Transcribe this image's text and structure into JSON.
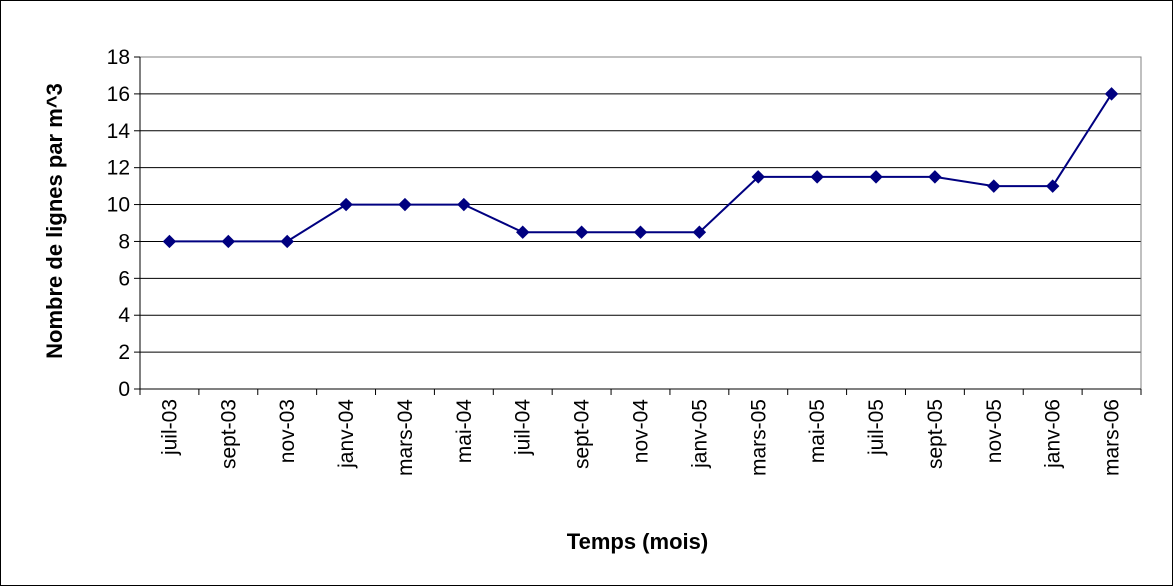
{
  "chart_data": {
    "type": "line",
    "title": "",
    "xlabel": "Temps (mois)",
    "ylabel": "Nombre de lignes par m^3",
    "ylim": [
      0,
      18
    ],
    "yticks": [
      "0",
      "2",
      "4",
      "6",
      "8",
      "10",
      "12",
      "14",
      "16",
      "18"
    ],
    "grid": "horizontal",
    "legend": "none",
    "categories": [
      "juil-03",
      "sept-03",
      "nov-03",
      "janv-04",
      "mars-04",
      "mai-04",
      "juil-04",
      "sept-04",
      "nov-04",
      "janv-05",
      "mars-05",
      "mai-05",
      "juil-05",
      "sept-05",
      "nov-05",
      "janv-06",
      "mars-06"
    ],
    "series": [
      {
        "color": "#000080",
        "marker": "diamond",
        "values": [
          8,
          8,
          8,
          10,
          10,
          10,
          8.5,
          8.5,
          8.5,
          8.5,
          11.5,
          11.5,
          11.5,
          11.5,
          11,
          11,
          16
        ]
      }
    ]
  }
}
